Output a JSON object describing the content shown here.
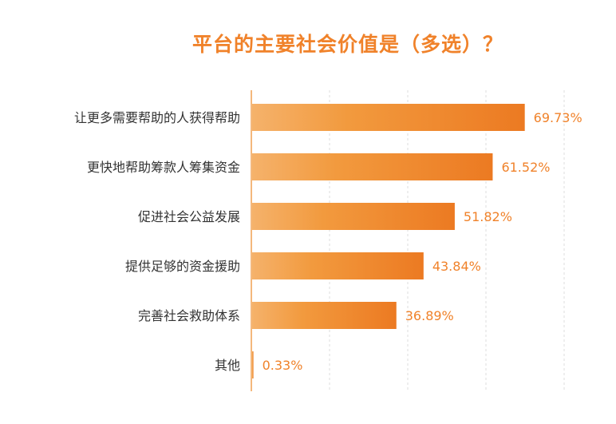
{
  "chart_data": {
    "type": "bar",
    "orientation": "horizontal",
    "title": "平台的主要社会价值是（多选）？",
    "categories": [
      "让更多需要帮助的人获得帮助",
      "更快地帮助筹款人筹集资金",
      "促进社会公益发展",
      "提供足够的资金援助",
      "完善社会救助体系",
      "其他"
    ],
    "values": [
      69.73,
      61.52,
      51.82,
      43.84,
      36.89,
      0.33
    ],
    "value_labels": [
      "69.73%",
      "61.52%",
      "51.82%",
      "43.84%",
      "36.89%",
      "0.33%"
    ],
    "unit": "%",
    "xlim": [
      0,
      80
    ],
    "grid": true,
    "legend": "none",
    "colors": {
      "bar_start": "#f5b26b",
      "bar_end": "#ec7a22",
      "title": "#f0822a",
      "value_text": "#f0822a",
      "category_text": "#333333",
      "axis": "#f0a050",
      "grid": "#dddddd"
    }
  }
}
